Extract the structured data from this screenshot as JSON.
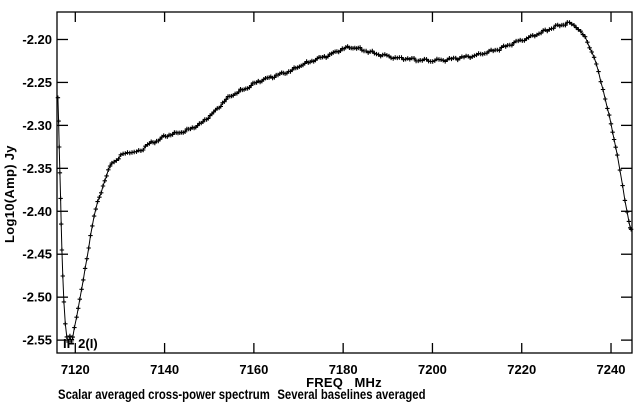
{
  "chart_data": {
    "type": "line",
    "title": "Scalar averaged cross-power spectrum   Several baselines averaged",
    "caption": {
      "left": "Scalar averaged cross-power spectrum",
      "right": "Several baselines averaged"
    },
    "xlabel": "FREQ   MHz",
    "ylabel": "Log10(Amp) Jy",
    "annotation": "IF 2(I)",
    "xlim": [
      7115.9,
      7244.7
    ],
    "ylim": [
      -2.565,
      -2.168
    ],
    "x_ticks": [
      7120,
      7140,
      7160,
      7180,
      7200,
      7220,
      7240
    ],
    "y_ticks": [
      -2.2,
      -2.25,
      -2.3,
      -2.35,
      -2.4,
      -2.45,
      -2.5,
      -2.55
    ],
    "y_tick_decimals": 2,
    "grid": false,
    "legend": "none",
    "axis_color": "#000000",
    "background_color": "#ffffff",
    "series": [
      {
        "name": "IF 2(I) scalar averaged cross-power",
        "marker": "plus",
        "color": "#000000",
        "sample_step_mhz": 0.45,
        "jitter_amp": 0.0022,
        "points": [
          [
            7116.1,
            -2.268
          ],
          [
            7116.25,
            -2.295
          ],
          [
            7116.4,
            -2.325
          ],
          [
            7116.55,
            -2.355
          ],
          [
            7116.7,
            -2.385
          ],
          [
            7116.85,
            -2.415
          ],
          [
            7117.0,
            -2.445
          ],
          [
            7117.2,
            -2.475
          ],
          [
            7117.45,
            -2.505
          ],
          [
            7117.75,
            -2.53
          ],
          [
            7118.1,
            -2.547
          ],
          [
            7118.45,
            -2.553
          ],
          [
            7118.8,
            -2.546
          ],
          [
            7119.1,
            -2.552
          ],
          [
            7119.45,
            -2.547
          ],
          [
            7119.8,
            -2.535
          ],
          [
            7120.3,
            -2.522
          ],
          [
            7121.0,
            -2.503
          ],
          [
            7121.8,
            -2.48
          ],
          [
            7122.6,
            -2.455
          ],
          [
            7123.4,
            -2.428
          ],
          [
            7124.2,
            -2.406
          ],
          [
            7125.0,
            -2.39
          ],
          [
            7125.8,
            -2.377
          ],
          [
            7126.6,
            -2.364
          ],
          [
            7127.4,
            -2.353
          ],
          [
            7128.2,
            -2.344
          ],
          [
            7129.2,
            -2.34
          ],
          [
            7130.2,
            -2.336
          ],
          [
            7131.2,
            -2.332
          ],
          [
            7132.2,
            -2.331
          ],
          [
            7133.2,
            -2.332
          ],
          [
            7134.2,
            -2.33
          ],
          [
            7135.2,
            -2.327
          ],
          [
            7136.2,
            -2.323
          ],
          [
            7137.4,
            -2.319
          ],
          [
            7138.6,
            -2.318
          ],
          [
            7139.8,
            -2.313
          ],
          [
            7141.0,
            -2.311
          ],
          [
            7142.2,
            -2.31
          ],
          [
            7143.4,
            -2.308
          ],
          [
            7144.6,
            -2.307
          ],
          [
            7145.8,
            -2.304
          ],
          [
            7147.0,
            -2.301
          ],
          [
            7148.2,
            -2.298
          ],
          [
            7149.4,
            -2.292
          ],
          [
            7150.6,
            -2.287
          ],
          [
            7151.8,
            -2.281
          ],
          [
            7153.0,
            -2.274
          ],
          [
            7154.2,
            -2.268
          ],
          [
            7155.4,
            -2.264
          ],
          [
            7156.6,
            -2.261
          ],
          [
            7157.8,
            -2.258
          ],
          [
            7159.0,
            -2.255
          ],
          [
            7160.2,
            -2.251
          ],
          [
            7161.4,
            -2.248
          ],
          [
            7162.6,
            -2.246
          ],
          [
            7163.8,
            -2.244
          ],
          [
            7165.0,
            -2.242
          ],
          [
            7166.2,
            -2.24
          ],
          [
            7167.4,
            -2.238
          ],
          [
            7168.6,
            -2.236
          ],
          [
            7169.8,
            -2.232
          ],
          [
            7171.0,
            -2.229
          ],
          [
            7172.2,
            -2.227
          ],
          [
            7173.4,
            -2.224
          ],
          [
            7174.6,
            -2.222
          ],
          [
            7175.8,
            -2.22
          ],
          [
            7177.0,
            -2.218
          ],
          [
            7178.2,
            -2.215
          ],
          [
            7179.4,
            -2.212
          ],
          [
            7180.6,
            -2.21
          ],
          [
            7181.8,
            -2.209
          ],
          [
            7183.0,
            -2.21
          ],
          [
            7184.2,
            -2.212
          ],
          [
            7185.6,
            -2.214
          ],
          [
            7187.0,
            -2.216
          ],
          [
            7188.4,
            -2.218
          ],
          [
            7189.8,
            -2.219
          ],
          [
            7191.2,
            -2.221
          ],
          [
            7192.6,
            -2.222
          ],
          [
            7194.0,
            -2.222
          ],
          [
            7195.4,
            -2.223
          ],
          [
            7196.8,
            -2.224
          ],
          [
            7198.2,
            -2.224
          ],
          [
            7199.6,
            -2.225
          ],
          [
            7201.0,
            -2.224
          ],
          [
            7202.4,
            -2.224
          ],
          [
            7203.8,
            -2.223
          ],
          [
            7205.2,
            -2.222
          ],
          [
            7206.6,
            -2.221
          ],
          [
            7208.0,
            -2.22
          ],
          [
            7209.4,
            -2.219
          ],
          [
            7210.8,
            -2.217
          ],
          [
            7212.2,
            -2.215
          ],
          [
            7213.6,
            -2.213
          ],
          [
            7215.0,
            -2.211
          ],
          [
            7216.4,
            -2.208
          ],
          [
            7217.8,
            -2.205
          ],
          [
            7219.2,
            -2.202
          ],
          [
            7220.6,
            -2.2
          ],
          [
            7222.0,
            -2.197
          ],
          [
            7223.4,
            -2.194
          ],
          [
            7224.8,
            -2.191
          ],
          [
            7226.2,
            -2.188
          ],
          [
            7227.6,
            -2.185
          ],
          [
            7229.0,
            -2.183
          ],
          [
            7230.2,
            -2.181
          ],
          [
            7231.2,
            -2.182
          ],
          [
            7232.2,
            -2.185
          ],
          [
            7233.2,
            -2.191
          ],
          [
            7234.2,
            -2.198
          ],
          [
            7235.2,
            -2.208
          ],
          [
            7236.2,
            -2.221
          ],
          [
            7237.2,
            -2.238
          ],
          [
            7238.2,
            -2.258
          ],
          [
            7239.2,
            -2.28
          ],
          [
            7240.0,
            -2.299
          ],
          [
            7240.7,
            -2.316
          ],
          [
            7241.4,
            -2.334
          ],
          [
            7242.0,
            -2.352
          ],
          [
            7242.6,
            -2.371
          ],
          [
            7243.1,
            -2.387
          ],
          [
            7243.6,
            -2.401
          ],
          [
            7244.0,
            -2.411
          ],
          [
            7244.3,
            -2.418
          ],
          [
            7244.5,
            -2.421
          ]
        ]
      }
    ]
  }
}
